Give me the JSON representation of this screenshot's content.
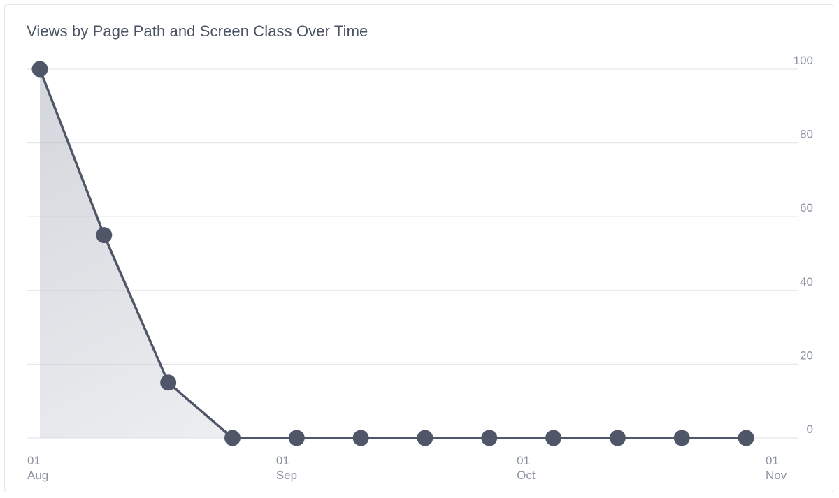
{
  "chart_data": {
    "type": "line",
    "title": "Views by Page Path and Screen Class Over Time",
    "xlabel": "",
    "ylabel": "",
    "x": [
      "Aug 01",
      "Aug 09",
      "Aug 17",
      "Aug 25",
      "Sep 02",
      "Sep 10",
      "Sep 18",
      "Sep 26",
      "Oct 04",
      "Oct 12",
      "Oct 20",
      "Oct 28"
    ],
    "series": [
      {
        "values": [
          100,
          55,
          15,
          0,
          0,
          0,
          0,
          0,
          0,
          0,
          0,
          0
        ]
      }
    ],
    "ylim": [
      0,
      100
    ],
    "y_ticks": [
      "0",
      "20",
      "40",
      "60",
      "80",
      "100"
    ],
    "x_ticks": [
      {
        "day": "01",
        "month": "Aug",
        "date": "Aug 01"
      },
      {
        "day": "01",
        "month": "Sep",
        "date": "Sep 01"
      },
      {
        "day": "01",
        "month": "Oct",
        "date": "Oct 01"
      },
      {
        "day": "01",
        "month": "Nov",
        "date": "Nov 01"
      }
    ],
    "y_axis_side": "right",
    "grid": true,
    "area_fill": true,
    "line_color": "#4f5668",
    "grid_color": "#e5e7eb",
    "label_color": "#8c92a0",
    "title_color": "#4a5263"
  }
}
